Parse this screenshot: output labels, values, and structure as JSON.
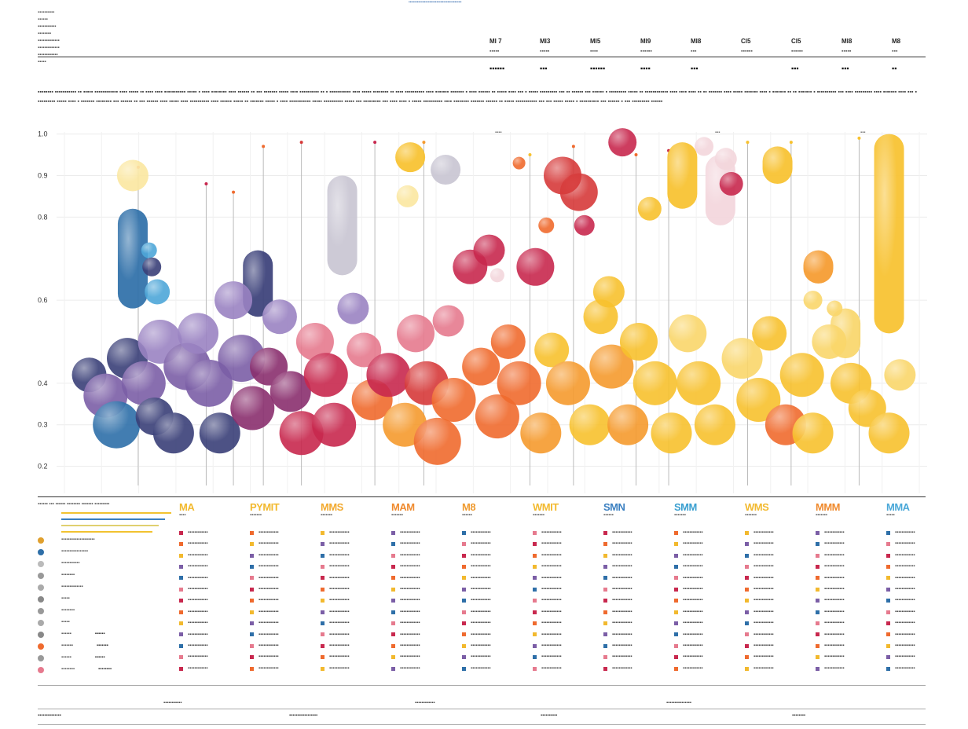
{
  "header": {
    "banner": "▪▪▪▪▪▪▪▪▪▪▪▪▪▪▪▪▪▪▪▪▪▪▪▪▪▪▪▪▪▪▪▪▪▪▪▪▪▪",
    "meta_lines": [
      "▪▪▪▪▪▪▪▪▪▪",
      "▪▪▪▪▪▪",
      "▪▪▪▪▪▪▪▪▪▪▪",
      "▪▪▪▪▪▪▪▪",
      "▪▪▪▪▪▪▪▪▪▪▪▪▪",
      "▪▪▪▪▪▪▪▪▪▪▪▪▪",
      "▪▪▪▪▪▪▪▪▪▪▪▪",
      "▪▪▪▪▪"
    ],
    "stats": [
      {
        "head": "MI 7",
        "sub": "▪▪▪▪▪",
        "val": "▪▪▪▪▪▪"
      },
      {
        "head": "MI3",
        "sub": "▪▪▪▪▪",
        "val": "▪▪▪"
      },
      {
        "head": "MI5",
        "sub": "▪▪▪▪",
        "val": "▪▪▪▪▪▪"
      },
      {
        "head": "MI9",
        "sub": "▪▪▪▪▪▪",
        "val": "▪▪▪▪"
      },
      {
        "head": "MI8",
        "sub": "▪▪▪",
        "val": "▪▪▪"
      },
      {
        "head": "Cl5",
        "sub": "▪▪▪▪▪▪",
        "val": ""
      },
      {
        "head": "Cl5",
        "sub": "▪▪▪▪▪▪",
        "val": "▪▪▪"
      },
      {
        "head": "Ml8",
        "sub": "▪▪▪▪▪",
        "val": "▪▪▪"
      },
      {
        "head": "M8",
        "sub": "▪▪▪",
        "val": "▪▪"
      }
    ],
    "paragraph": "▪▪▪▪▪▪▪▪ ▪▪▪▪▪▪▪▪▪▪▪ ▪▪ ▪▪▪▪▪ ▪▪▪▪▪▪▪▪▪▪▪▪ ▪▪▪▪ ▪▪▪▪▪ ▪▪ ▪▪▪▪ ▪▪▪▪ ▪▪▪▪▪▪▪▪▪▪▪ ▪▪▪▪▪ ▪ ▪▪▪▪ ▪▪▪▪▪▪▪▪ ▪▪▪▪ ▪▪▪▪▪▪ ▪▪ ▪▪▪ ▪▪▪▪▪▪▪ ▪▪▪▪▪ ▪▪▪▪ ▪▪▪▪▪▪▪▪▪▪ ▪▪ ▪ ▪▪▪▪▪▪▪▪▪▪▪ ▪▪▪▪ ▪▪▪▪▪ ▪▪▪▪▪▪▪▪ ▪▪ ▪▪▪▪ ▪▪▪▪▪▪▪▪▪▪ ▪▪▪▪ ▪▪▪▪▪▪▪ ▪▪▪▪▪▪▪ ▪ ▪▪▪▪ ▪▪▪▪▪▪ ▪▪ ▪▪▪▪▪ ▪▪▪▪ ▪▪▪ ▪ ▪▪▪▪▪ ▪▪▪▪▪▪▪▪▪ ▪▪▪ ▪▪ ▪▪▪▪▪▪ ▪▪▪ ▪▪▪▪▪▪ ▪ ▪▪▪▪▪▪▪▪▪ ▪▪▪▪▪ ▪▪ ▪▪▪▪▪▪▪▪▪▪▪▪ ▪▪▪▪ ▪▪▪▪ ▪▪▪▪ ▪▪ ▪▪ ▪▪▪▪▪▪▪ ▪▪▪▪ ▪▪▪▪▪ ▪▪▪▪▪▪▪ ▪▪▪▪ ▪ ▪▪▪▪▪▪▪ ▪▪ ▪▪ ▪▪▪▪▪▪▪ ▪ ▪▪▪▪▪▪▪▪▪▪ ▪▪▪ ▪▪▪▪ ▪▪▪▪▪▪▪▪▪ ▪▪▪▪ ▪▪▪▪▪▪▪ ▪▪▪▪ ▪▪▪ ▪ ▪▪▪▪▪▪▪▪▪ ▪▪▪▪▪ ▪▪▪▪ ▪ ▪▪▪▪▪▪▪ ▪▪▪▪▪▪▪▪ ▪▪▪ ▪▪▪▪▪▪ ▪▪ ▪▪▪ ▪▪▪▪▪▪ ▪▪▪▪ ▪▪▪▪▪ ▪▪▪▪ ▪▪▪▪▪▪▪▪▪▪ ▪▪▪▪ ▪▪▪▪▪▪ ▪▪▪▪▪ ▪▪ ▪▪▪▪▪▪▪ ▪▪▪▪▪ ▪ ▪▪▪▪ ▪▪▪▪▪▪▪▪▪▪▪ ▪▪▪▪▪ ▪▪▪▪▪▪▪▪▪▪ ▪▪▪▪▪ ▪▪▪ ▪▪▪▪▪▪▪▪▪ ▪▪▪ ▪▪▪▪ ▪▪▪▪ ▪ ▪▪▪▪▪ ▪▪▪▪▪▪▪▪▪▪ ▪▪▪▪ ▪▪▪▪▪▪▪▪ ▪▪▪▪▪▪▪ ▪▪▪▪▪▪ ▪▪ ▪▪▪▪▪ ▪▪▪▪▪▪▪▪▪▪▪ ▪▪▪ ▪▪▪ ▪▪▪▪▪ ▪▪▪▪▪ ▪ ▪▪▪▪▪▪▪▪▪▪ ▪▪▪ ▪▪▪▪▪▪ ▪ ▪▪▪ ▪▪▪▪▪▪▪▪▪ ▪▪▪▪▪▪"
  },
  "chart_data": {
    "type": "scatter",
    "title": "",
    "xlabel": "",
    "ylabel": "",
    "ylim": [
      0.2,
      1.0
    ],
    "y_ticks": [
      {
        "value": 1.0,
        "label": "1.0"
      },
      {
        "value": 0.9,
        "label": "0.9"
      },
      {
        "value": 0.8,
        "label": "0.8"
      },
      {
        "value": 0.6,
        "label": "0.6"
      },
      {
        "value": 0.4,
        "label": "0.4"
      },
      {
        "value": 0.3,
        "label": "0.3"
      },
      {
        "value": 0.2,
        "label": "0.2"
      }
    ],
    "x_count": 23,
    "grid": true,
    "notes": [
      "▪▪▪▪",
      "▪▪▪",
      "▪▪▪"
    ],
    "colors": {
      "blue": "#2e6fa8",
      "navy": "#3a3f78",
      "violet": "#7b5ea6",
      "lavender": "#9a83c2",
      "plum": "#8a2f6e",
      "crimson": "#c8284e",
      "pink": "#e67a8e",
      "red": "#d63a3a",
      "orange": "#ef6a2e",
      "amber": "#f59a2e",
      "gold": "#f7c12e",
      "lightgold": "#f9d66a",
      "paleyellow": "#fbe7a0",
      "palepink": "#f3d6dc",
      "lightblue": "#4ea6d8",
      "grey": "#c9c6d2"
    },
    "capsules": [
      {
        "x": 2.8,
        "y_top": 0.82,
        "y_bottom": 0.58,
        "color": "blue"
      },
      {
        "x": 7.4,
        "y_top": 0.72,
        "y_bottom": 0.56,
        "color": "navy"
      },
      {
        "x": 10.5,
        "y_top": 0.9,
        "y_bottom": 0.66,
        "color": "grey"
      },
      {
        "x": 13.0,
        "y_top": 0.98,
        "y_bottom": 0.95,
        "color": "gold"
      },
      {
        "x": 14.3,
        "y_top": 0.95,
        "y_bottom": 0.9,
        "color": "grey"
      },
      {
        "x": 23.0,
        "y_top": 0.98,
        "y_bottom": 0.82,
        "color": "gold"
      },
      {
        "x": 24.4,
        "y_top": 0.95,
        "y_bottom": 0.78,
        "color": "palepink"
      },
      {
        "x": 26.5,
        "y_top": 0.97,
        "y_bottom": 0.88,
        "color": "gold"
      },
      {
        "x": 28.0,
        "y_top": 0.72,
        "y_bottom": 0.64,
        "color": "amber"
      },
      {
        "x": 29.0,
        "y_top": 0.58,
        "y_bottom": 0.46,
        "color": "lightgold"
      },
      {
        "x": 30.6,
        "y_top": 1.0,
        "y_bottom": 0.52,
        "color": "gold"
      }
    ],
    "bubbles": [
      {
        "x": 1.2,
        "y": 0.42,
        "r": 22,
        "color": "navy"
      },
      {
        "x": 1.8,
        "y": 0.37,
        "r": 28,
        "color": "violet"
      },
      {
        "x": 2.2,
        "y": 0.3,
        "r": 30,
        "color": "blue"
      },
      {
        "x": 2.6,
        "y": 0.46,
        "r": 26,
        "color": "navy"
      },
      {
        "x": 3.2,
        "y": 0.4,
        "r": 28,
        "color": "violet"
      },
      {
        "x": 3.8,
        "y": 0.5,
        "r": 28,
        "color": "lavender"
      },
      {
        "x": 3.6,
        "y": 0.32,
        "r": 24,
        "color": "navy"
      },
      {
        "x": 4.3,
        "y": 0.28,
        "r": 26,
        "color": "navy"
      },
      {
        "x": 4.8,
        "y": 0.44,
        "r": 30,
        "color": "violet"
      },
      {
        "x": 5.2,
        "y": 0.52,
        "r": 26,
        "color": "lavender"
      },
      {
        "x": 5.6,
        "y": 0.4,
        "r": 30,
        "color": "violet"
      },
      {
        "x": 6.0,
        "y": 0.28,
        "r": 26,
        "color": "navy"
      },
      {
        "x": 6.5,
        "y": 0.6,
        "r": 24,
        "color": "lavender"
      },
      {
        "x": 6.8,
        "y": 0.46,
        "r": 30,
        "color": "violet"
      },
      {
        "x": 7.2,
        "y": 0.34,
        "r": 28,
        "color": "plum"
      },
      {
        "x": 7.8,
        "y": 0.44,
        "r": 24,
        "color": "plum"
      },
      {
        "x": 8.2,
        "y": 0.56,
        "r": 22,
        "color": "lavender"
      },
      {
        "x": 8.6,
        "y": 0.38,
        "r": 26,
        "color": "plum"
      },
      {
        "x": 9.0,
        "y": 0.28,
        "r": 28,
        "color": "crimson"
      },
      {
        "x": 9.5,
        "y": 0.5,
        "r": 24,
        "color": "pink"
      },
      {
        "x": 9.9,
        "y": 0.42,
        "r": 28,
        "color": "crimson"
      },
      {
        "x": 10.2,
        "y": 0.3,
        "r": 28,
        "color": "crimson"
      },
      {
        "x": 10.9,
        "y": 0.58,
        "r": 20,
        "color": "lavender"
      },
      {
        "x": 11.3,
        "y": 0.48,
        "r": 22,
        "color": "pink"
      },
      {
        "x": 11.6,
        "y": 0.36,
        "r": 26,
        "color": "orange"
      },
      {
        "x": 12.2,
        "y": 0.42,
        "r": 28,
        "color": "crimson"
      },
      {
        "x": 12.8,
        "y": 0.3,
        "r": 28,
        "color": "amber"
      },
      {
        "x": 13.2,
        "y": 0.52,
        "r": 24,
        "color": "pink"
      },
      {
        "x": 13.6,
        "y": 0.4,
        "r": 28,
        "color": "red"
      },
      {
        "x": 14.0,
        "y": 0.26,
        "r": 30,
        "color": "orange"
      },
      {
        "x": 14.6,
        "y": 0.36,
        "r": 28,
        "color": "orange"
      },
      {
        "x": 14.4,
        "y": 0.55,
        "r": 20,
        "color": "pink"
      },
      {
        "x": 15.2,
        "y": 0.68,
        "r": 22,
        "color": "crimson"
      },
      {
        "x": 15.6,
        "y": 0.44,
        "r": 24,
        "color": "orange"
      },
      {
        "x": 16.2,
        "y": 0.32,
        "r": 28,
        "color": "orange"
      },
      {
        "x": 16.6,
        "y": 0.5,
        "r": 22,
        "color": "orange"
      },
      {
        "x": 17.0,
        "y": 0.4,
        "r": 28,
        "color": "orange"
      },
      {
        "x": 17.6,
        "y": 0.68,
        "r": 24,
        "color": "crimson"
      },
      {
        "x": 17.8,
        "y": 0.28,
        "r": 26,
        "color": "amber"
      },
      {
        "x": 18.2,
        "y": 0.48,
        "r": 22,
        "color": "gold"
      },
      {
        "x": 18.8,
        "y": 0.4,
        "r": 28,
        "color": "amber"
      },
      {
        "x": 19.2,
        "y": 0.86,
        "r": 24,
        "color": "red"
      },
      {
        "x": 19.6,
        "y": 0.3,
        "r": 26,
        "color": "gold"
      },
      {
        "x": 20.0,
        "y": 0.56,
        "r": 22,
        "color": "gold"
      },
      {
        "x": 20.4,
        "y": 0.44,
        "r": 28,
        "color": "amber"
      },
      {
        "x": 20.8,
        "y": 0.98,
        "r": 18,
        "color": "crimson"
      },
      {
        "x": 21.0,
        "y": 0.3,
        "r": 26,
        "color": "amber"
      },
      {
        "x": 21.4,
        "y": 0.5,
        "r": 24,
        "color": "gold"
      },
      {
        "x": 21.8,
        "y": 0.82,
        "r": 15,
        "color": "gold"
      },
      {
        "x": 22.0,
        "y": 0.4,
        "r": 28,
        "color": "gold"
      },
      {
        "x": 22.6,
        "y": 0.28,
        "r": 26,
        "color": "gold"
      },
      {
        "x": 23.2,
        "y": 0.52,
        "r": 24,
        "color": "lightgold"
      },
      {
        "x": 23.6,
        "y": 0.4,
        "r": 28,
        "color": "gold"
      },
      {
        "x": 24.2,
        "y": 0.3,
        "r": 26,
        "color": "gold"
      },
      {
        "x": 24.8,
        "y": 0.88,
        "r": 15,
        "color": "crimson"
      },
      {
        "x": 25.2,
        "y": 0.46,
        "r": 26,
        "color": "lightgold"
      },
      {
        "x": 25.8,
        "y": 0.36,
        "r": 28,
        "color": "gold"
      },
      {
        "x": 26.2,
        "y": 0.52,
        "r": 22,
        "color": "gold"
      },
      {
        "x": 26.8,
        "y": 0.3,
        "r": 26,
        "color": "orange"
      },
      {
        "x": 27.4,
        "y": 0.42,
        "r": 28,
        "color": "gold"
      },
      {
        "x": 27.8,
        "y": 0.28,
        "r": 26,
        "color": "gold"
      },
      {
        "x": 28.4,
        "y": 0.5,
        "r": 22,
        "color": "lightgold"
      },
      {
        "x": 29.2,
        "y": 0.4,
        "r": 26,
        "color": "gold"
      },
      {
        "x": 29.8,
        "y": 0.34,
        "r": 24,
        "color": "gold"
      },
      {
        "x": 30.6,
        "y": 0.28,
        "r": 26,
        "color": "gold"
      },
      {
        "x": 31.0,
        "y": 0.42,
        "r": 20,
        "color": "lightgold"
      },
      {
        "x": 2.8,
        "y": 0.9,
        "r": 20,
        "color": "paleyellow"
      },
      {
        "x": 3.4,
        "y": 0.72,
        "r": 10,
        "color": "lightblue"
      },
      {
        "x": 3.5,
        "y": 0.68,
        "r": 12,
        "color": "navy"
      },
      {
        "x": 3.7,
        "y": 0.62,
        "r": 16,
        "color": "lightblue"
      },
      {
        "x": 12.9,
        "y": 0.85,
        "r": 14,
        "color": "paleyellow"
      },
      {
        "x": 15.9,
        "y": 0.72,
        "r": 20,
        "color": "crimson"
      },
      {
        "x": 16.2,
        "y": 0.66,
        "r": 9,
        "color": "palepink"
      },
      {
        "x": 17.0,
        "y": 0.93,
        "r": 8,
        "color": "orange"
      },
      {
        "x": 18.6,
        "y": 0.9,
        "r": 24,
        "color": "red"
      },
      {
        "x": 18.0,
        "y": 0.78,
        "r": 10,
        "color": "orange"
      },
      {
        "x": 19.4,
        "y": 0.78,
        "r": 13,
        "color": "crimson"
      },
      {
        "x": 20.3,
        "y": 0.62,
        "r": 20,
        "color": "gold"
      },
      {
        "x": 24.6,
        "y": 0.94,
        "r": 14,
        "color": "palepink"
      },
      {
        "x": 23.8,
        "y": 0.97,
        "r": 12,
        "color": "palepink"
      },
      {
        "x": 27.8,
        "y": 0.6,
        "r": 12,
        "color": "lightgold"
      },
      {
        "x": 28.6,
        "y": 0.58,
        "r": 10,
        "color": "lightgold"
      }
    ],
    "stems": [
      {
        "x": 3.0,
        "top": 0.92,
        "color": "orange"
      },
      {
        "x": 5.5,
        "top": 0.88,
        "color": "crimson"
      },
      {
        "x": 6.5,
        "top": 0.86,
        "color": "orange"
      },
      {
        "x": 7.6,
        "top": 0.97,
        "color": "orange"
      },
      {
        "x": 9.0,
        "top": 0.98,
        "color": "red"
      },
      {
        "x": 11.7,
        "top": 0.98,
        "color": "crimson"
      },
      {
        "x": 13.5,
        "top": 0.98,
        "color": "amber"
      },
      {
        "x": 17.4,
        "top": 0.95,
        "color": "gold"
      },
      {
        "x": 19.0,
        "top": 0.97,
        "color": "orange"
      },
      {
        "x": 21.3,
        "top": 0.95,
        "color": "orange"
      },
      {
        "x": 22.5,
        "top": 0.96,
        "color": "crimson"
      },
      {
        "x": 25.4,
        "top": 0.98,
        "color": "gold"
      },
      {
        "x": 27.0,
        "top": 0.98,
        "color": "gold"
      },
      {
        "x": 29.5,
        "top": 0.99,
        "color": "gold"
      }
    ]
  },
  "legend": {
    "left_title": "▪▪▪▪▪▪ ▪▪▪ ▪▪▪▪▪▪ ▪▪▪▪▪▪▪▪ ▪▪▪▪▪▪▪ ▪▪▪▪▪▪▪▪▪",
    "left_rows": [
      {
        "dot": "#e0a02e",
        "text": "▪▪▪▪▪▪▪▪▪▪▪▪▪▪▪▪▪▪▪▪"
      },
      {
        "dot": "#2e6fa8",
        "text": "▪▪▪▪▪▪▪▪▪▪▪▪▪▪▪▪"
      },
      {
        "dot": "#bbbbbb",
        "text": "▪▪▪▪▪▪▪▪▪▪▪"
      },
      {
        "dot": "#999999",
        "text": "▪▪▪▪▪▪▪▪"
      },
      {
        "dot": "#aaaaaa",
        "text": "▪▪▪▪▪▪▪▪▪▪▪▪▪"
      },
      {
        "dot": "#888888",
        "text": "▪▪▪▪▪"
      },
      {
        "dot": "#999999",
        "text": "▪▪▪▪▪▪▪▪"
      },
      {
        "dot": "#aaaaaa",
        "text": "▪▪▪▪▪"
      },
      {
        "dot": "#888888",
        "text": "▪▪▪▪▪▪"
      },
      {
        "dot": "#ef6a2e",
        "text": "▪▪▪▪▪▪▪"
      },
      {
        "dot": "#999999",
        "text": "▪▪▪▪▪▪"
      },
      {
        "dot": "#e67a8e",
        "text": "▪▪▪▪▪▪▪▪"
      }
    ],
    "categories": [
      {
        "title": "MA",
        "color": "#f2b92e",
        "sub": "▪▪▪▪"
      },
      {
        "title": "PYMIT",
        "color": "#f2b92e",
        "sub": "▪▪▪▪▪▪▪"
      },
      {
        "title": "MMS",
        "color": "#f2a92e",
        "sub": "▪▪▪▪▪▪▪"
      },
      {
        "title": "MAM",
        "color": "#ef8a2e",
        "sub": "▪▪▪▪▪▪▪"
      },
      {
        "title": "M8",
        "color": "#ef9a2e",
        "sub": "▪▪▪▪▪▪"
      },
      {
        "title": "WMIT",
        "color": "#f2b92e",
        "sub": "▪▪▪▪▪▪▪"
      },
      {
        "title": "SMN",
        "color": "#3a7fc0",
        "sub": "▪▪▪▪▪▪"
      },
      {
        "title": "SMM",
        "color": "#3a9fd0",
        "sub": "▪▪▪▪▪▪▪"
      },
      {
        "title": "WMS",
        "color": "#f2b92e",
        "sub": "▪▪▪▪▪▪▪"
      },
      {
        "title": "MMM",
        "color": "#ef8a2e",
        "sub": "▪▪▪▪▪▪▪"
      },
      {
        "title": "MMA",
        "color": "#4aa8d8",
        "sub": "▪▪▪▪▪"
      }
    ],
    "row_text": "▪▪▪▪▪▪▪▪▪▪▪▪",
    "footer_items": [
      "▪▪▪▪▪▪▪▪▪▪▪▪▪▪",
      "▪▪▪▪▪▪▪▪▪▪▪",
      "▪▪▪▪▪▪▪▪▪▪▪▪▪▪▪▪▪",
      "▪▪▪▪▪▪▪▪▪▪▪▪",
      "▪▪▪▪▪▪▪▪▪▪",
      "▪▪▪▪▪▪▪▪▪▪▪▪▪▪▪",
      "▪▪▪▪▪▪▪▪"
    ]
  }
}
